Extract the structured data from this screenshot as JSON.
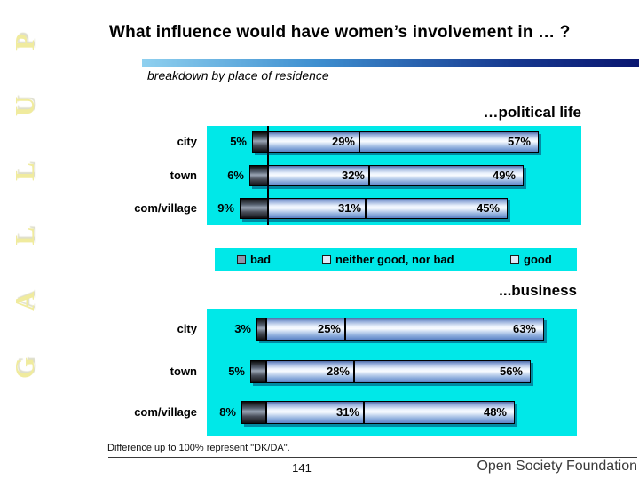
{
  "page": {
    "title": "What influence would have women’s involvement in … ?",
    "subtitle": "breakdown by place of residence",
    "watermark": "GALLUP",
    "footnote": "Difference up to 100% represent \"DK/DA\".",
    "page_number": "141",
    "footer_right": "Open Society Foundation"
  },
  "legend": {
    "position": "between-charts",
    "items": [
      {
        "label": "bad",
        "color": "#8a97ab"
      },
      {
        "label": "neither good, nor bad",
        "color": "#dde9f7"
      },
      {
        "label": "good",
        "color": "#dde9f7"
      }
    ]
  },
  "colors": {
    "plot_background": "#00e8e8",
    "accent_bar_start": "#8fd0ef",
    "accent_bar_mid1": "#3e8fd0",
    "accent_bar_mid2": "#16388f",
    "accent_bar_end": "#0a1670",
    "watermark_yellow": "#f0eb9e",
    "bad_segment": "#3c4450",
    "good_segment": "#aac4e8"
  },
  "chart_data": [
    {
      "type": "bar",
      "orientation": "horizontal",
      "title": "…political life",
      "categories": [
        "city",
        "town",
        "com/village"
      ],
      "series": [
        {
          "name": "bad",
          "values": [
            5,
            6,
            9
          ]
        },
        {
          "name": "neither good, nor bad",
          "values": [
            29,
            32,
            31
          ]
        },
        {
          "name": "good",
          "values": [
            57,
            49,
            45
          ]
        }
      ],
      "value_suffix": "%",
      "stacked": true,
      "grid": "single-vertical-line-at-bad-boundary",
      "note_axis": "segments sum < 100, remainder is DK/DA"
    },
    {
      "type": "bar",
      "orientation": "horizontal",
      "title": "...business",
      "categories": [
        "city",
        "town",
        "com/village"
      ],
      "series": [
        {
          "name": "bad",
          "values": [
            3,
            5,
            8
          ]
        },
        {
          "name": "neither good, nor bad",
          "values": [
            25,
            28,
            31
          ]
        },
        {
          "name": "good",
          "values": [
            63,
            56,
            48
          ]
        }
      ],
      "value_suffix": "%",
      "stacked": true,
      "grid": "none"
    }
  ]
}
